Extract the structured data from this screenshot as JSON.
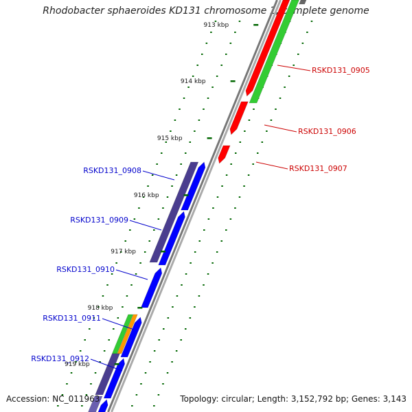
{
  "title": "Rhodobacter sphaeroides KD131 chromosome 1, complete genome",
  "accession_text": "Accession: NC_011963",
  "summary_text": "Topology: circular; Length: 3,152,792 bp; Genes: 3,143",
  "scale": {
    "unit": "kbp",
    "ticks": [
      "913 kbp",
      "914 kbp",
      "915 kbp",
      "916 kbp",
      "917 kbp",
      "918 kbp",
      "919 kbp"
    ]
  },
  "colors": {
    "forward_gene": "#ff0000",
    "reverse_gene": "#0000ff",
    "forward_feature": "#33cc33",
    "reverse_feature": "#4a3d8f",
    "orange_feature": "#ff9900",
    "backbone": "#888888",
    "tick": "#006600"
  },
  "genes": [
    {
      "label": "RSKD131_0905",
      "strand": "forward",
      "color": "#cc0000"
    },
    {
      "label": "RSKD131_0906",
      "strand": "forward",
      "color": "#cc0000"
    },
    {
      "label": "RSKD131_0907",
      "strand": "forward",
      "color": "#cc0000"
    },
    {
      "label": "RSKD131_0908",
      "strand": "reverse",
      "color": "#0000cc"
    },
    {
      "label": "RSKD131_0909",
      "strand": "reverse",
      "color": "#0000cc"
    },
    {
      "label": "RSKD131_0910",
      "strand": "reverse",
      "color": "#0000cc"
    },
    {
      "label": "RSKD131_0911",
      "strand": "reverse",
      "color": "#0000cc"
    },
    {
      "label": "RSKD131_0912",
      "strand": "reverse",
      "color": "#0000cc"
    }
  ]
}
